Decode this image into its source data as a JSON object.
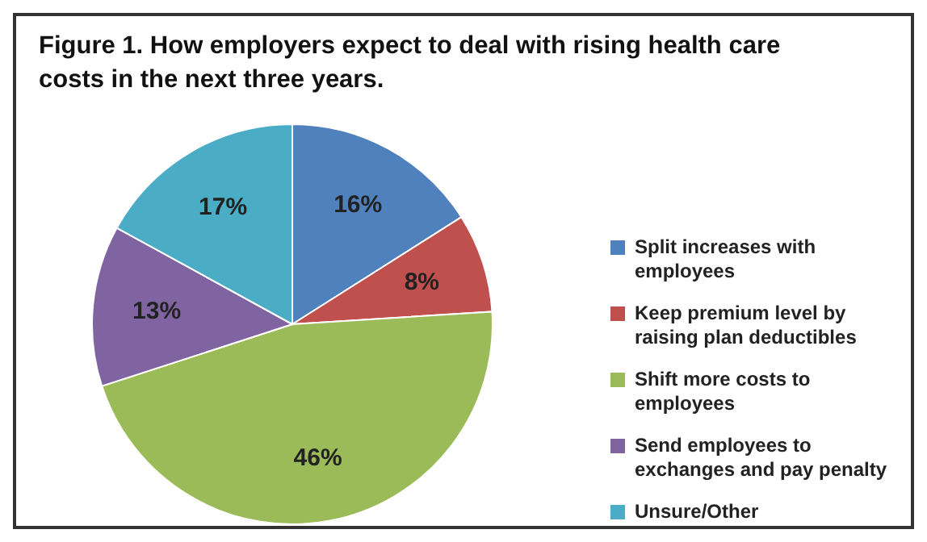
{
  "chart_data": {
    "type": "pie",
    "title": "Figure 1. How employers expect to deal with rising health care costs in the next three years.",
    "categories": [
      "Split increases with employees",
      "Keep premium level by raising plan deductibles",
      "Shift more costs to employees",
      "Send employees to exchanges and pay penalty",
      "Unsure/Other"
    ],
    "values": [
      16,
      8,
      46,
      13,
      17
    ],
    "value_labels": [
      "16%",
      "8%",
      "46%",
      "13%",
      "17%"
    ],
    "colors": [
      "#4f81bd",
      "#c0504d",
      "#9bbb59",
      "#8064a2",
      "#4bacc6"
    ],
    "legend": "right"
  }
}
